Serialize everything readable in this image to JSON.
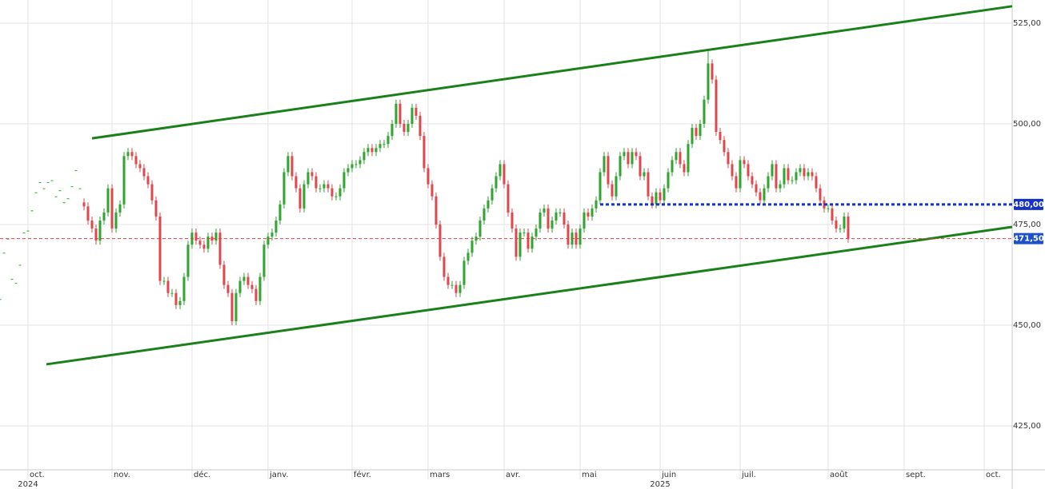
{
  "chart_data": {
    "type": "candlestick",
    "x": [
      0,
      1,
      2,
      3,
      4,
      5,
      6,
      7,
      8,
      9,
      10,
      11,
      12,
      13,
      14,
      15,
      16,
      17,
      18,
      19,
      20,
      21,
      22,
      23,
      24,
      25,
      26,
      27,
      28,
      29,
      30,
      31,
      32,
      33,
      34,
      35,
      36,
      37,
      38,
      39,
      40,
      41,
      42,
      43,
      44,
      45,
      46,
      47,
      48,
      49,
      50,
      51,
      52,
      53,
      54,
      55,
      56,
      57,
      58,
      59,
      60,
      61,
      62,
      63,
      64,
      65,
      66,
      67,
      68,
      69,
      70,
      71,
      72,
      73,
      74,
      75,
      76,
      77,
      78,
      79,
      80,
      81,
      82,
      83,
      84,
      85,
      86,
      87,
      88,
      89,
      90,
      91,
      92,
      93,
      94,
      95,
      96,
      97,
      98,
      99,
      100,
      101,
      102,
      103,
      104,
      105,
      106,
      107,
      108,
      109,
      110,
      111,
      112,
      113,
      114,
      115,
      116,
      117,
      118,
      119,
      120,
      121,
      122,
      123,
      124,
      125,
      126,
      127,
      128,
      129,
      130,
      131,
      132,
      133,
      134,
      135,
      136,
      137,
      138,
      139,
      140,
      141,
      142,
      143,
      144,
      145,
      146,
      147,
      148,
      149,
      150,
      151,
      152,
      153,
      154,
      155,
      156,
      157,
      158,
      159,
      160,
      161,
      162,
      163,
      164,
      165,
      166,
      167,
      168,
      169,
      170,
      171,
      172,
      173,
      174,
      175,
      176,
      177,
      178,
      179,
      180,
      181,
      182,
      183,
      184,
      185,
      186,
      187,
      188,
      189,
      190,
      191,
      192,
      193,
      194,
      195,
      196,
      197,
      198,
      199,
      200,
      201,
      202,
      203,
      204,
      205,
      206,
      207,
      208,
      209,
      210,
      211,
      212
    ],
    "open": [
      456.5,
      468,
      471.5,
      461.5,
      460.5,
      465,
      473,
      473.5,
      478.5,
      483,
      485.5,
      484,
      485.5,
      486,
      482,
      483.5,
      480.5,
      481.5,
      484.5,
      488.5,
      484,
      480.5,
      479.5,
      476,
      474,
      471,
      476,
      478,
      484,
      474,
      478,
      480,
      492,
      493,
      492,
      490,
      489,
      487,
      485,
      481,
      477,
      461,
      461,
      458,
      458,
      455,
      456,
      462,
      470,
      473,
      471,
      470,
      469,
      472,
      471,
      473,
      465,
      460,
      458,
      451,
      458,
      461,
      462,
      460,
      459,
      456,
      462,
      470,
      472,
      473,
      476,
      480,
      488,
      492,
      487,
      484,
      479,
      485,
      488,
      487,
      484,
      484,
      485,
      484,
      482,
      482,
      484,
      488,
      489,
      490,
      490,
      491,
      493,
      494,
      493,
      494,
      495,
      495,
      497,
      500,
      505,
      500,
      498,
      500,
      504,
      502,
      497,
      489,
      485,
      482,
      475,
      467,
      462,
      460,
      460,
      458,
      460,
      466,
      468,
      471,
      472,
      476,
      479,
      481,
      484,
      487,
      490,
      485,
      478,
      474,
      467,
      473,
      473,
      469,
      472,
      474,
      478,
      479,
      474,
      476,
      478,
      478,
      475,
      470,
      473,
      470,
      474,
      478,
      477,
      479,
      481,
      488,
      492,
      485,
      482,
      487,
      492,
      493,
      490,
      493,
      492,
      487,
      488,
      482,
      480,
      483,
      481,
      484,
      488,
      491,
      493,
      490,
      488,
      495,
      499,
      497,
      500,
      506,
      515,
      511,
      498,
      496,
      493,
      490,
      487,
      484,
      491,
      490,
      487,
      485,
      483,
      481,
      484,
      487,
      490,
      484,
      485,
      489,
      486,
      486,
      488,
      489,
      487,
      488,
      487,
      484,
      481,
      479,
      479,
      476,
      474,
      474,
      477
    ],
    "high": [
      456.5,
      468,
      471.5,
      461.5,
      460.5,
      465,
      473,
      473.5,
      478.5,
      483,
      485.5,
      484,
      485.5,
      486,
      482,
      483.5,
      480.5,
      481.5,
      484.5,
      488.5,
      484,
      481.5,
      480.5,
      477,
      475,
      477,
      479,
      485,
      485,
      479,
      481,
      493,
      494,
      494,
      493,
      491,
      490,
      488,
      486,
      482,
      478,
      462,
      462,
      459,
      459,
      457,
      463,
      471,
      474,
      474,
      472,
      471,
      473,
      473,
      474,
      474,
      466,
      461,
      459,
      459,
      462,
      463,
      463,
      461,
      460,
      463,
      471,
      473,
      474,
      477,
      481,
      489,
      493,
      493,
      488,
      485,
      486,
      489,
      489,
      488,
      485,
      486,
      486,
      485,
      483,
      485,
      489,
      490,
      491,
      491,
      492,
      494,
      495,
      495,
      495,
      496,
      496,
      498,
      501,
      506,
      506,
      501,
      501,
      505,
      505,
      503,
      498,
      490,
      486,
      483,
      476,
      468,
      463,
      461,
      461,
      461,
      467,
      469,
      472,
      473,
      477,
      480,
      482,
      485,
      488,
      491,
      491,
      486,
      479,
      475,
      474,
      474,
      474,
      473,
      475,
      479,
      480,
      480,
      477,
      479,
      479,
      479,
      476,
      474,
      474,
      475,
      479,
      479,
      480,
      482,
      489,
      493,
      493,
      486,
      488,
      493,
      494,
      494,
      494,
      494,
      493,
      489,
      489,
      483,
      484,
      484,
      485,
      489,
      492,
      494,
      494,
      491,
      496,
      500,
      500,
      501,
      507,
      518,
      516,
      512,
      499,
      497,
      494,
      491,
      488,
      492,
      492,
      491,
      488,
      486,
      484,
      485,
      488,
      491,
      491,
      486,
      490,
      490,
      487,
      489,
      490,
      490,
      489,
      489,
      488,
      485,
      482,
      480,
      480,
      477,
      475,
      478,
      478
    ],
    "low": [
      456.5,
      468,
      471.5,
      461.5,
      460.5,
      465,
      473,
      473.5,
      478.5,
      483,
      485.5,
      484,
      485.5,
      486,
      482,
      483.5,
      480.5,
      481.5,
      484.5,
      488.5,
      484,
      478.5,
      475,
      473,
      470,
      470,
      475,
      477,
      473,
      473,
      477,
      479,
      491,
      491,
      489,
      488,
      486,
      484,
      480,
      476,
      460,
      460,
      457,
      457,
      454,
      454,
      455,
      461,
      469,
      470,
      469,
      468,
      468,
      470,
      470,
      464,
      459,
      457,
      450,
      450,
      457,
      460,
      459,
      458,
      455,
      455,
      461,
      469,
      471,
      472,
      475,
      479,
      487,
      486,
      483,
      478,
      478,
      484,
      486,
      483,
      483,
      483,
      483,
      481,
      481,
      481,
      483,
      487,
      488,
      489,
      489,
      490,
      492,
      492,
      492,
      493,
      494,
      494,
      496,
      499,
      499,
      497,
      497,
      499,
      501,
      496,
      488,
      484,
      481,
      474,
      466,
      461,
      459,
      459,
      457,
      457,
      459,
      465,
      467,
      470,
      471,
      475,
      478,
      480,
      483,
      486,
      484,
      477,
      473,
      466,
      466,
      472,
      468,
      468,
      471,
      473,
      477,
      473,
      473,
      475,
      477,
      474,
      469,
      469,
      469,
      469,
      473,
      476,
      476,
      478,
      480,
      487,
      484,
      481,
      481,
      486,
      491,
      489,
      489,
      491,
      486,
      486,
      481,
      479,
      479,
      480,
      480,
      483,
      487,
      490,
      489,
      487,
      487,
      494,
      496,
      496,
      499,
      505,
      510,
      497,
      495,
      492,
      489,
      486,
      483,
      483,
      489,
      486,
      484,
      482,
      480,
      480,
      483,
      486,
      483,
      483,
      484,
      485,
      485,
      485,
      487,
      486,
      486,
      486,
      483,
      480,
      478,
      478,
      475,
      473,
      473,
      473,
      470.5
    ],
    "close": [
      456.5,
      468,
      471.5,
      461.5,
      460.5,
      465,
      473,
      473.5,
      478.5,
      483,
      485.5,
      484,
      485.5,
      486,
      482,
      483.5,
      480.5,
      481.5,
      484.5,
      488.5,
      484,
      479.5,
      476,
      474,
      471,
      476,
      478,
      484,
      474,
      478,
      480,
      492,
      493,
      492,
      490,
      489,
      487,
      485,
      481,
      477,
      461,
      461,
      458,
      458,
      455,
      456,
      462,
      470,
      473,
      471,
      470,
      469,
      472,
      471,
      473,
      465,
      460,
      458,
      451,
      458,
      461,
      462,
      460,
      459,
      456,
      462,
      470,
      472,
      473,
      476,
      480,
      488,
      492,
      487,
      484,
      479,
      485,
      488,
      487,
      484,
      484,
      485,
      484,
      482,
      482,
      484,
      488,
      489,
      490,
      490,
      491,
      493,
      494,
      493,
      494,
      495,
      495,
      497,
      500,
      505,
      500,
      498,
      500,
      504,
      502,
      497,
      489,
      485,
      482,
      475,
      467,
      462,
      460,
      460,
      458,
      460,
      466,
      468,
      471,
      472,
      476,
      479,
      481,
      484,
      487,
      490,
      485,
      478,
      474,
      467,
      473,
      473,
      469,
      472,
      474,
      478,
      479,
      474,
      476,
      478,
      478,
      475,
      470,
      473,
      470,
      474,
      478,
      477,
      479,
      481,
      488,
      492,
      485,
      482,
      487,
      492,
      493,
      490,
      493,
      492,
      487,
      488,
      482,
      480,
      483,
      481,
      484,
      488,
      491,
      493,
      490,
      488,
      495,
      499,
      497,
      500,
      506,
      515,
      511,
      498,
      496,
      493,
      490,
      487,
      484,
      491,
      490,
      487,
      485,
      483,
      481,
      484,
      487,
      490,
      484,
      485,
      489,
      486,
      486,
      488,
      489,
      487,
      488,
      487,
      484,
      481,
      479,
      479,
      476,
      474,
      474,
      477,
      471.5
    ],
    "up_color": "#2ea52e",
    "down_color": "#e0474c",
    "xlim": [
      0,
      253
    ],
    "ylim": [
      414.1,
      530.75
    ],
    "yticks": [
      {
        "value": 425,
        "label": "425,00"
      },
      {
        "value": 450,
        "label": "450,00"
      },
      {
        "value": 475,
        "label": "475,00"
      },
      {
        "value": 500,
        "label": "500,00"
      },
      {
        "value": 525,
        "label": "525,00"
      }
    ],
    "xticks": [
      {
        "value": 7,
        "label": "oct."
      },
      {
        "value": 28,
        "label": "nov."
      },
      {
        "value": 48,
        "label": "déc."
      },
      {
        "value": 67,
        "label": "janv."
      },
      {
        "value": 88,
        "label": "févr."
      },
      {
        "value": 107,
        "label": "mars"
      },
      {
        "value": 126,
        "label": "avr."
      },
      {
        "value": 145,
        "label": "mai"
      },
      {
        "value": 165,
        "label": "juin"
      },
      {
        "value": 185,
        "label": "juil."
      },
      {
        "value": 207,
        "label": "août"
      },
      {
        "value": 226,
        "label": "sept."
      },
      {
        "value": 246,
        "label": "oct."
      }
    ],
    "year_labels": [
      {
        "value": 7,
        "label": "2024"
      },
      {
        "value": 165,
        "label": "2025"
      }
    ],
    "grid": true,
    "trend_lines": [
      {
        "x": [
          23,
          253
        ],
        "y": [
          496.4,
          529.2
        ],
        "color": "#1a801a"
      },
      {
        "x": [
          11.6,
          253
        ],
        "y": [
          440.3,
          474.4
        ],
        "color": "#1a801a"
      }
    ],
    "price_lines": [
      {
        "value": 480,
        "label": "480,00",
        "x_start": 150,
        "style": "dotted",
        "color": "#1432c8"
      },
      {
        "value": 471.5,
        "label": "471,50",
        "x_start": 0,
        "style": "dashed",
        "color": "#d9404a"
      }
    ]
  }
}
